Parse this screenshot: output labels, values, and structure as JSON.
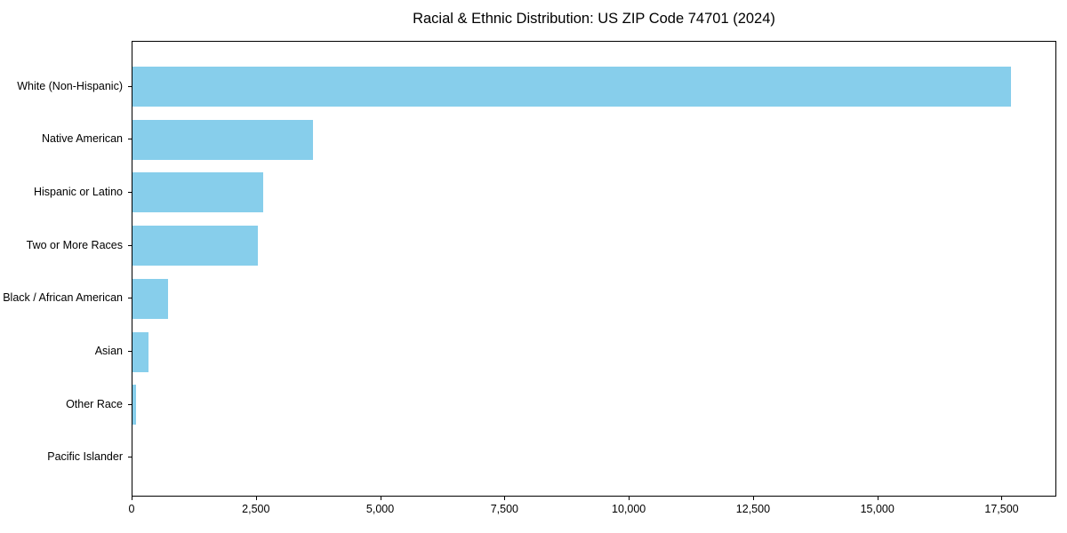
{
  "chart_data": {
    "type": "bar",
    "orientation": "horizontal",
    "title": "Racial & Ethnic Distribution: US ZIP Code 74701 (2024)",
    "categories": [
      "White (Non-Hispanic)",
      "Native American",
      "Hispanic or Latino",
      "Two or More Races",
      "Black / African American",
      "Asian",
      "Other Race",
      "Pacific Islander"
    ],
    "values": [
      17675,
      3630,
      2630,
      2520,
      715,
      320,
      70,
      0
    ],
    "xlabel": "",
    "ylabel": "",
    "xlim": [
      0,
      18600
    ],
    "x_ticks": [
      {
        "value": 0,
        "label": "0"
      },
      {
        "value": 2500,
        "label": "2,500"
      },
      {
        "value": 5000,
        "label": "5,000"
      },
      {
        "value": 7500,
        "label": "7,500"
      },
      {
        "value": 10000,
        "label": "10,000"
      },
      {
        "value": 12500,
        "label": "12,500"
      },
      {
        "value": 15000,
        "label": "15,000"
      },
      {
        "value": 17500,
        "label": "17,500"
      }
    ],
    "bar_color": "#87CEEB",
    "text_color": "#000000",
    "axis_color": "#000000",
    "grid": false,
    "legend": null
  }
}
